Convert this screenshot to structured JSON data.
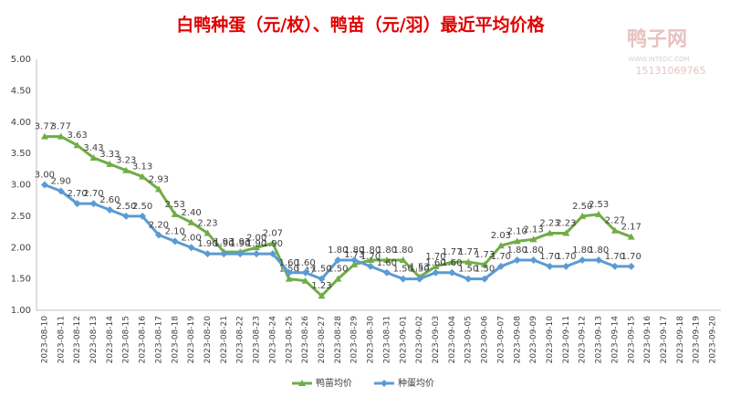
{
  "chart_data": {
    "type": "line",
    "title": "白鸭种蛋（元/枚）、鸭苗（元/羽）最近平均价格",
    "watermark": {
      "name": "鸭子网",
      "url": "WWW.INTEDC.COM",
      "phone": "15131069765"
    },
    "categories": [
      "2023-08-10",
      "2023-08-11",
      "2023-08-12",
      "2023-08-13",
      "2023-08-14",
      "2023-08-15",
      "2023-08-16",
      "2023-08-17",
      "2023-08-18",
      "2023-08-19",
      "2023-08-20",
      "2023-08-21",
      "2023-08-22",
      "2023-08-23",
      "2023-08-24",
      "2023-08-25",
      "2023-08-26",
      "2023-08-27",
      "2023-08-28",
      "2023-08-29",
      "2023-08-30",
      "2023-08-31",
      "2023-09-01",
      "2023-09-02",
      "2023-09-03",
      "2023-09-04",
      "2023-09-05",
      "2023-09-06",
      "2023-09-07",
      "2023-09-08",
      "2023-09-09",
      "2023-09-10",
      "2023-09-11",
      "2023-09-12",
      "2023-09-13",
      "2023-09-14",
      "2023-09-15",
      "2023-09-16",
      "2023-09-17",
      "2023-09-18",
      "2023-09-19",
      "2023-09-20"
    ],
    "series": [
      {
        "name": "鸭苗均价",
        "color": "#70ad47",
        "marker": "triangle",
        "values": [
          3.77,
          3.77,
          3.63,
          3.43,
          3.33,
          3.23,
          3.13,
          2.93,
          2.53,
          2.4,
          2.23,
          1.93,
          1.93,
          2.0,
          2.07,
          1.5,
          1.47,
          1.23,
          1.5,
          1.73,
          1.8,
          1.8,
          1.8,
          1.53,
          1.7,
          1.77,
          1.77,
          1.73,
          2.03,
          2.1,
          2.13,
          2.23,
          2.23,
          2.5,
          2.53,
          2.27,
          2.17,
          null,
          null,
          null,
          null,
          null
        ],
        "value_labels": [
          "3.77",
          "3.77",
          "3.63",
          "3.43",
          "3.33",
          "3.23",
          "3.13",
          "2.93",
          "2.53",
          "2.40",
          "2.23",
          "1.93",
          "1.93",
          "2.00",
          "2.07",
          "1.50",
          "1.47",
          "1.23",
          "1.50",
          "1.73",
          "1.80",
          "1.80",
          "1.80",
          "1.53",
          "1.70",
          "1.77",
          "1.77",
          "1.73",
          "2.03",
          "2.10",
          "2.13",
          "2.23",
          "2.23",
          "2.50",
          "2.53",
          "2.27",
          "2.17",
          null,
          null,
          null,
          null,
          null
        ]
      },
      {
        "name": "种蛋均价",
        "color": "#5b9bd5",
        "marker": "diamond",
        "values": [
          3.0,
          2.9,
          2.7,
          2.7,
          2.6,
          2.5,
          2.5,
          2.2,
          2.1,
          2.0,
          1.9,
          1.9,
          1.9,
          1.9,
          1.9,
          1.6,
          1.6,
          1.5,
          1.8,
          1.8,
          1.7,
          1.6,
          1.5,
          1.5,
          1.6,
          1.6,
          1.5,
          1.5,
          1.7,
          1.8,
          1.8,
          1.7,
          1.7,
          1.8,
          1.8,
          1.7,
          1.7,
          null,
          null,
          null,
          null,
          null
        ],
        "value_labels": [
          "3.00",
          "2.90",
          "2.70",
          "2.70",
          "2.60",
          "2.50",
          "2.50",
          "2.20",
          "2.10",
          "2.00",
          "1.90",
          "1.90",
          "1.90",
          "1.90",
          "1.90",
          "1.60",
          "1.60",
          "1.50",
          "1.80",
          "1.80",
          "1.70",
          "1.60",
          "1.50",
          "1.50",
          "1.60",
          "1.60",
          "1.50",
          "1.50",
          "1.70",
          "1.80",
          "1.80",
          "1.70",
          "1.70",
          "1.80",
          "1.80",
          "1.70",
          "1.70",
          null,
          null,
          null,
          null,
          null
        ]
      }
    ],
    "ylim": [
      1,
      5
    ],
    "yticks": [
      {
        "value": 1,
        "label": "1.00"
      },
      {
        "value": 1.5,
        "label": "1.50"
      },
      {
        "value": 2,
        "label": "2.00"
      },
      {
        "value": 2.5,
        "label": "2.50"
      },
      {
        "value": 3,
        "label": "3.00"
      },
      {
        "value": 3.5,
        "label": "3.50"
      },
      {
        "value": 4,
        "label": "4.00"
      },
      {
        "value": 4.5,
        "label": "4.50"
      },
      {
        "value": 5,
        "label": "5.00"
      }
    ],
    "grid": false,
    "legend": "bottom"
  }
}
